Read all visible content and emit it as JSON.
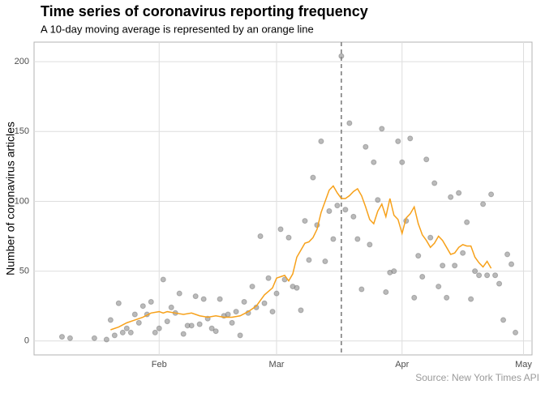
{
  "chart_data": {
    "type": "scatter",
    "title": "Time series of coronavirus reporting frequency",
    "subtitle": "A 10-day moving average is represented by an orange line",
    "ylabel": "Number of coronavirus articles",
    "caption": "Source: New York Times API",
    "xlim": [
      1.1,
      124.1
    ],
    "ylim": [
      -10,
      214
    ],
    "xticks": [
      {
        "value": 32,
        "label": "Feb"
      },
      {
        "value": 61,
        "label": "Mar"
      },
      {
        "value": 92,
        "label": "Apr"
      },
      {
        "value": 122,
        "label": "May"
      }
    ],
    "yticks": [
      0,
      50,
      100,
      150,
      200
    ],
    "grid": true,
    "vline": 77,
    "vline_color": "#777777",
    "series": [
      {
        "type": "scatter",
        "color": "#8c8c8c",
        "x": [
          8,
          10,
          16,
          19,
          20,
          21,
          22,
          23,
          24,
          25,
          26,
          27,
          28,
          29,
          30,
          31,
          32,
          33,
          34,
          35,
          36,
          37,
          38,
          39,
          40,
          41,
          42,
          43,
          44,
          45,
          46,
          47,
          48,
          49,
          50,
          51,
          52,
          53,
          54,
          55,
          56,
          57,
          58,
          59,
          60,
          61,
          62,
          63,
          64,
          65,
          66,
          67,
          68,
          69,
          70,
          71,
          72,
          73,
          74,
          75,
          76,
          77,
          78,
          79,
          80,
          81,
          82,
          83,
          84,
          85,
          86,
          87,
          88,
          89,
          90,
          91,
          92,
          93,
          94,
          95,
          96,
          97,
          98,
          99,
          100,
          101,
          102,
          103,
          104,
          105,
          106,
          107,
          108,
          109,
          110,
          111,
          112,
          113,
          114,
          115,
          116,
          117,
          118,
          119,
          120
        ],
        "values": [
          3,
          2,
          2,
          1,
          15,
          4,
          27,
          6,
          9,
          6,
          19,
          13,
          25,
          19,
          28,
          6,
          9,
          44,
          14,
          24,
          20,
          34,
          5,
          11,
          11,
          32,
          12,
          30,
          16,
          9,
          7,
          30,
          18,
          19,
          13,
          21,
          4,
          28,
          20,
          39,
          24,
          75,
          27,
          45,
          21,
          34,
          80,
          44,
          74,
          39,
          38,
          22,
          86,
          58,
          117,
          83,
          143,
          57,
          93,
          73,
          97,
          204,
          94,
          156,
          89,
          73,
          37,
          139,
          69,
          128,
          101,
          152,
          35,
          49,
          50,
          143,
          128,
          86,
          145,
          31,
          61,
          46,
          130,
          74,
          113,
          39,
          54,
          31,
          103,
          54,
          106,
          63,
          85,
          30,
          50,
          47,
          98,
          47,
          105,
          47,
          41,
          15,
          62,
          55,
          6
        ]
      },
      {
        "type": "line",
        "color": "#f7a11a",
        "x": [
          20,
          22,
          24,
          26,
          28,
          30,
          32,
          33,
          34,
          36,
          38,
          40,
          42,
          44,
          46,
          48,
          50,
          52,
          54,
          56,
          58,
          60,
          61,
          62,
          63,
          64,
          65,
          66,
          67,
          68,
          69,
          70,
          71,
          72,
          73,
          74,
          75,
          76,
          77,
          78,
          79,
          80,
          81,
          82,
          83,
          84,
          85,
          86,
          87,
          88,
          89,
          90,
          91,
          92,
          93,
          94,
          95,
          96,
          97,
          98,
          99,
          100,
          101,
          102,
          103,
          104,
          105,
          106,
          107,
          108,
          109,
          110,
          111,
          112,
          113,
          114
        ],
        "values": [
          8,
          10,
          13,
          15,
          17,
          20,
          21,
          20,
          21,
          20,
          19,
          20,
          18,
          17,
          18,
          17,
          17,
          18,
          21,
          25,
          33,
          38,
          45,
          46,
          47,
          43,
          48,
          60,
          65,
          70,
          71,
          74,
          80,
          92,
          100,
          108,
          111,
          106,
          102,
          102,
          104,
          107,
          109,
          104,
          96,
          87,
          84,
          93,
          98,
          89,
          102,
          90,
          87,
          77,
          88,
          91,
          96,
          84,
          76,
          72,
          67,
          70,
          75,
          72,
          67,
          62,
          63,
          67,
          69,
          68,
          68,
          60,
          56,
          53,
          57,
          52
        ]
      }
    ]
  }
}
